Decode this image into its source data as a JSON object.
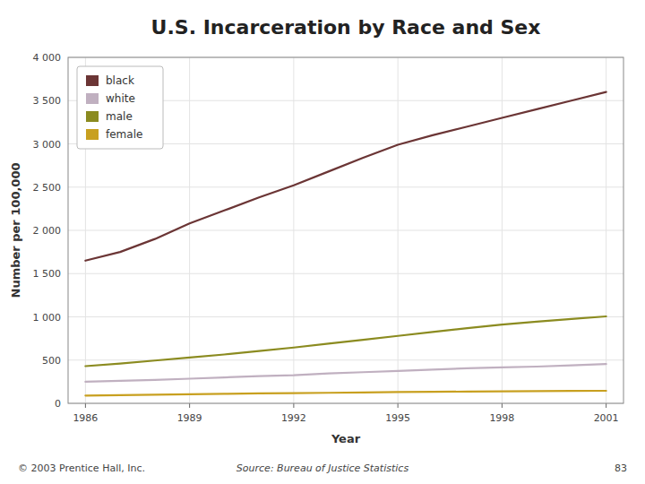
{
  "chart_data": {
    "type": "line",
    "title": "U.S. Incarceration by Race and Sex",
    "x_label": "Year",
    "y_label": "Number per 100,000",
    "x": [
      1986,
      1987,
      1988,
      1989,
      1990,
      1991,
      1992,
      1993,
      1994,
      1995,
      1996,
      1997,
      1998,
      1999,
      2000,
      2001
    ],
    "series": [
      {
        "name": "black",
        "color": "#6b3535",
        "values": [
          1650,
          1750,
          1900,
          2080,
          2230,
          2380,
          2520,
          2680,
          2840,
          2990,
          3100,
          3200,
          3300,
          3400,
          3500,
          3600
        ]
      },
      {
        "name": "white",
        "color": "#c0b0c0",
        "values": [
          250,
          260,
          270,
          285,
          300,
          315,
          325,
          345,
          360,
          375,
          390,
          405,
          415,
          425,
          440,
          455
        ]
      },
      {
        "name": "male",
        "color": "#8b8b20",
        "values": [
          430,
          460,
          495,
          530,
          565,
          605,
          645,
          690,
          735,
          780,
          825,
          870,
          910,
          945,
          975,
          1005
        ]
      },
      {
        "name": "female",
        "color": "#c8a020",
        "values": [
          90,
          95,
          100,
          105,
          110,
          115,
          118,
          122,
          126,
          130,
          133,
          136,
          139,
          141,
          143,
          145
        ]
      }
    ],
    "xlim": [
      1985.5,
      2001.5
    ],
    "xticks": [
      1986,
      1989,
      1992,
      1995,
      1998,
      2001
    ],
    "ylim": [
      0,
      4000
    ],
    "yticks": [
      0,
      500,
      {
        "value": 1000,
        "label": "1 000"
      },
      {
        "value": 1500,
        "label": "1 500"
      },
      {
        "value": 2000,
        "label": "2 000"
      },
      {
        "value": 2500,
        "label": "2 500"
      },
      {
        "value": 3000,
        "label": "3 000"
      },
      {
        "value": 3500,
        "label": "3 500"
      },
      {
        "value": 4000,
        "label": "4 000"
      }
    ],
    "grid": true,
    "legend": "upper left",
    "annotations": [
      "© 2003 Prentice Hall, Inc.",
      "Source: Bureau of Justice Statistics",
      "83"
    ]
  }
}
